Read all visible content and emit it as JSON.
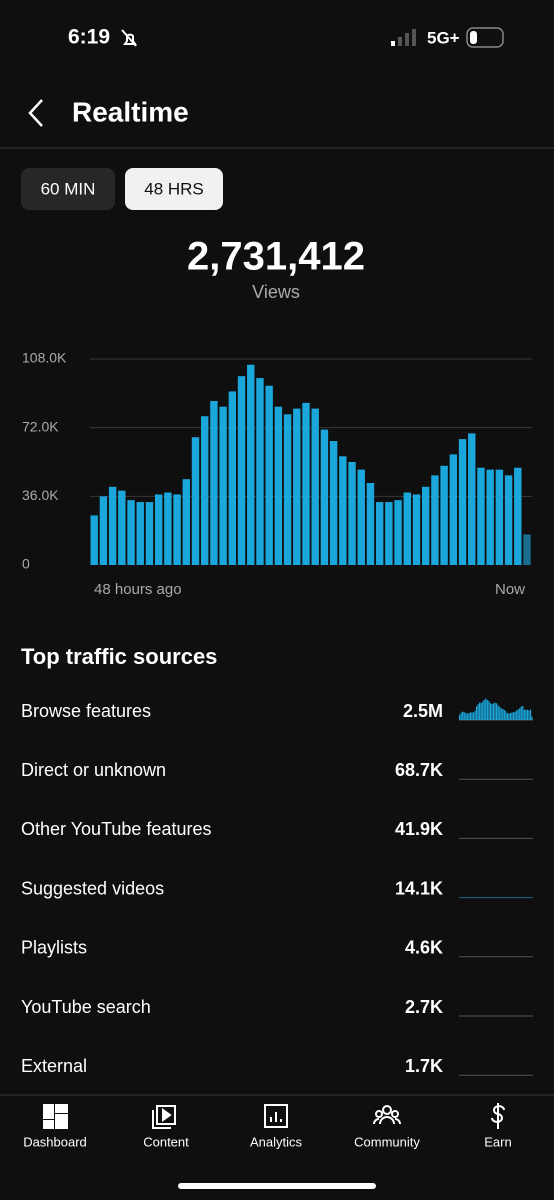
{
  "status": {
    "time": "6:19",
    "network": "5G+"
  },
  "header": {
    "title": "Realtime"
  },
  "tabs": [
    "60 MIN",
    "48 HRS"
  ],
  "summary": {
    "total": "2,731,412",
    "label": "Views"
  },
  "chart_data": {
    "type": "bar",
    "values": [
      26000,
      36000,
      41000,
      39000,
      34000,
      33000,
      33000,
      37000,
      38000,
      37000,
      45000,
      67000,
      78000,
      86000,
      83000,
      91000,
      99000,
      105000,
      98000,
      94000,
      83000,
      79000,
      82000,
      85000,
      82000,
      71000,
      65000,
      57000,
      54000,
      50000,
      43000,
      33000,
      33000,
      34000,
      38000,
      37000,
      41000,
      47000,
      52000,
      58000,
      66000,
      69000,
      51000,
      50000,
      50000,
      47000,
      51000,
      16000
    ],
    "color": "#1ba6dc",
    "last_color": "#1a6d8c",
    "ylim": [
      0,
      108000
    ],
    "yticks": [
      0,
      {
        "value": 36000,
        "label": "36.0K"
      },
      {
        "value": 72000,
        "label": "72.0K"
      },
      {
        "value": 108000,
        "label": "108.0K"
      }
    ],
    "grid": true,
    "x_start_label": "48 hours ago",
    "x_end_label": "Now"
  },
  "traffic": {
    "title": "Top traffic sources",
    "sources": [
      {
        "name": "Browse features",
        "value": "2.5M"
      },
      {
        "name": "Direct or unknown",
        "value": "68.7K"
      },
      {
        "name": "Other YouTube features",
        "value": "41.9K"
      },
      {
        "name": "Suggested videos",
        "value": "14.1K"
      },
      {
        "name": "Playlists",
        "value": "4.6K"
      },
      {
        "name": "YouTube search",
        "value": "2.7K"
      },
      {
        "name": "External",
        "value": "1.7K"
      }
    ]
  },
  "nav": [
    "Dashboard",
    "Content",
    "Analytics",
    "Community",
    "Earn"
  ]
}
